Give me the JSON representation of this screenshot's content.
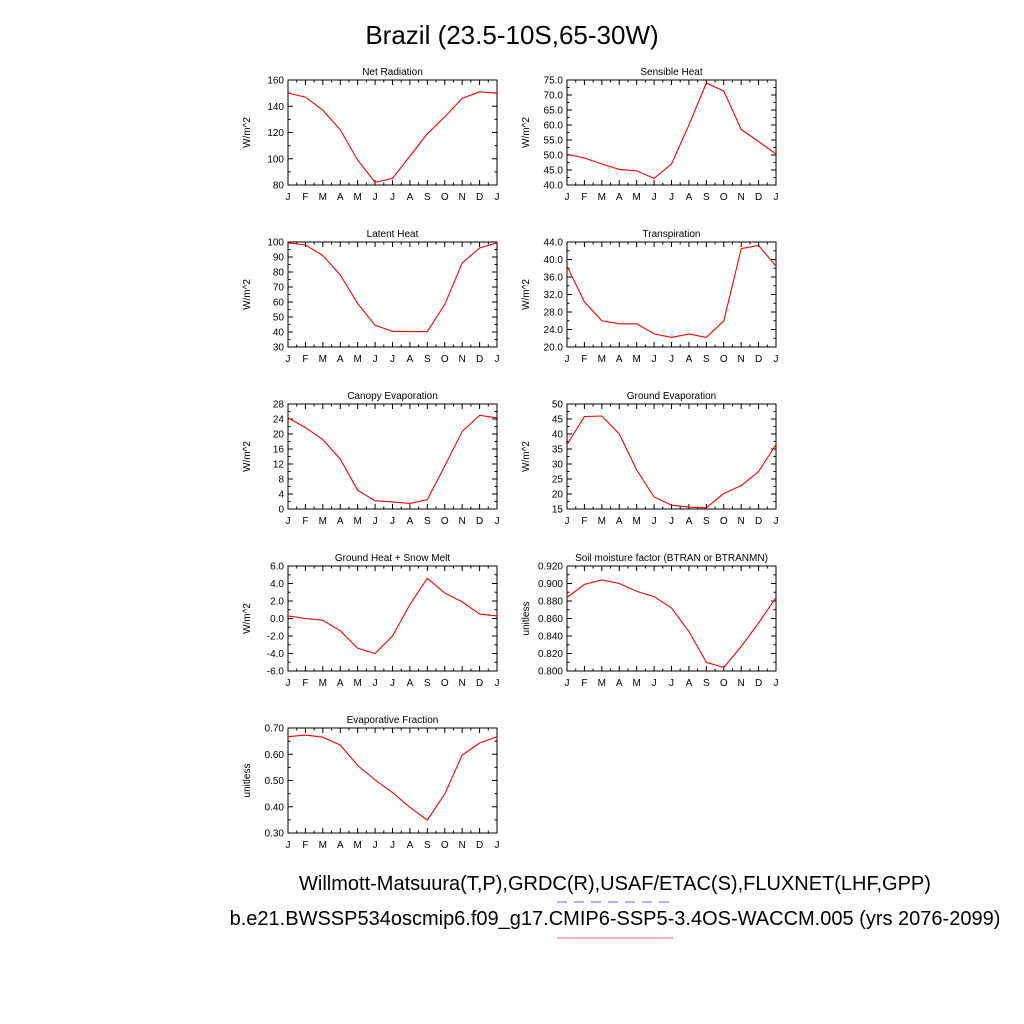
{
  "title": "Brazil (23.5-10S,65-30W)",
  "footer": {
    "line1": "Willmott-Matsuura(T,P),GRDC(R),USAF/ETAC(S),FLUXNET(LHF,GPP)",
    "line2": "b.e21.BWSSP534oscmip6.f09_g17.CMIP6-SSP5-3.4OS-WACCM.005 (yrs 2076-2099)",
    "line1_underline_color": "#6060ff",
    "line2_underline_color": "#ff6060"
  },
  "colors": {
    "series": "#ff0000",
    "axes": "#000000"
  },
  "chart_data": [
    {
      "type": "line",
      "title": "Net Radiation",
      "ylabel": "W/m^2",
      "categories": [
        "J",
        "F",
        "M",
        "A",
        "M",
        "J",
        "J",
        "A",
        "S",
        "O",
        "N",
        "D",
        "J"
      ],
      "values": [
        150,
        147,
        137,
        122,
        99,
        82,
        85,
        102,
        119,
        132,
        146,
        151,
        150
      ],
      "ylim": [
        80,
        160
      ],
      "yticks": [
        "80",
        "100",
        "120",
        "140",
        "160"
      ],
      "ytick_values": [
        80,
        100,
        120,
        140,
        160
      ]
    },
    {
      "type": "line",
      "title": "Sensible Heat",
      "ylabel": "W/m^2",
      "categories": [
        "J",
        "F",
        "M",
        "A",
        "M",
        "J",
        "J",
        "A",
        "S",
        "O",
        "N",
        "D",
        "J"
      ],
      "values": [
        50.3,
        49.0,
        47.0,
        45.2,
        44.7,
        42.2,
        47.0,
        60.0,
        74.0,
        71.3,
        58.5,
        54.5,
        50.3
      ],
      "ylim": [
        40,
        75
      ],
      "yticks": [
        "40.0",
        "45.0",
        "50.0",
        "55.0",
        "60.0",
        "65.0",
        "70.0",
        "75.0"
      ],
      "ytick_values": [
        40,
        45,
        50,
        55,
        60,
        65,
        70,
        75
      ]
    },
    {
      "type": "line",
      "title": "Latent Heat",
      "ylabel": "W/m^2",
      "categories": [
        "J",
        "F",
        "M",
        "A",
        "M",
        "J",
        "J",
        "A",
        "S",
        "O",
        "N",
        "D",
        "J"
      ],
      "values": [
        99.5,
        98,
        91,
        78,
        59,
        44.5,
        40.5,
        40.3,
        40.3,
        58.5,
        86,
        96,
        99.5
      ],
      "ylim": [
        30,
        100
      ],
      "yticks": [
        "30",
        "40",
        "50",
        "60",
        "70",
        "80",
        "90",
        "100"
      ],
      "ytick_values": [
        30,
        40,
        50,
        60,
        70,
        80,
        90,
        100
      ]
    },
    {
      "type": "line",
      "title": "Transpiration",
      "ylabel": "W/m^2",
      "categories": [
        "J",
        "F",
        "M",
        "A",
        "M",
        "J",
        "J",
        "A",
        "S",
        "O",
        "N",
        "D",
        "J"
      ],
      "values": [
        38.5,
        30.3,
        26.0,
        25.3,
        25.3,
        23.0,
        22.2,
        23.0,
        22.2,
        26.0,
        42.5,
        43.2,
        38.5
      ],
      "ylim": [
        20,
        44
      ],
      "yticks": [
        "20.0",
        "24.0",
        "28.0",
        "32.0",
        "36.0",
        "40.0",
        "44.0"
      ],
      "ytick_values": [
        20,
        24,
        28,
        32,
        36,
        40,
        44
      ]
    },
    {
      "type": "line",
      "title": "Canopy Evaporation",
      "ylabel": "W/m^2",
      "categories": [
        "J",
        "F",
        "M",
        "A",
        "M",
        "J",
        "J",
        "A",
        "S",
        "O",
        "N",
        "D",
        "J"
      ],
      "values": [
        24.3,
        21.7,
        18.5,
        13.3,
        5.0,
        2.2,
        1.9,
        1.5,
        2.5,
        11.5,
        20.7,
        25.0,
        24.3
      ],
      "ylim": [
        0,
        28
      ],
      "yticks": [
        "0",
        "4",
        "8",
        "12",
        "16",
        "20",
        "24",
        "28"
      ],
      "ytick_values": [
        0,
        4,
        8,
        12,
        16,
        20,
        24,
        28
      ]
    },
    {
      "type": "line",
      "title": "Ground Evaporation",
      "ylabel": "W/m^2",
      "categories": [
        "J",
        "F",
        "M",
        "A",
        "M",
        "J",
        "J",
        "A",
        "S",
        "O",
        "N",
        "D",
        "J"
      ],
      "values": [
        36.5,
        45.8,
        46.0,
        40.0,
        28.0,
        19.0,
        16.3,
        15.6,
        15.4,
        20.2,
        22.8,
        27.5,
        36.5
      ],
      "ylim": [
        15,
        50
      ],
      "yticks": [
        "15",
        "20",
        "25",
        "30",
        "35",
        "40",
        "45",
        "50"
      ],
      "ytick_values": [
        15,
        20,
        25,
        30,
        35,
        40,
        45,
        50
      ]
    },
    {
      "type": "line",
      "title": "Ground Heat + Snow Melt",
      "ylabel": "W/m^2",
      "categories": [
        "J",
        "F",
        "M",
        "A",
        "M",
        "J",
        "J",
        "A",
        "S",
        "O",
        "N",
        "D",
        "J"
      ],
      "values": [
        0.3,
        0.0,
        -0.2,
        -1.4,
        -3.4,
        -4.0,
        -2.0,
        1.6,
        4.6,
        2.9,
        1.9,
        0.5,
        0.3
      ],
      "ylim": [
        -6,
        6
      ],
      "yticks": [
        "-6.0",
        "-4.0",
        "-2.0",
        "0.0",
        "2.0",
        "4.0",
        "6.0"
      ],
      "ytick_values": [
        -6,
        -4,
        -2,
        0,
        2,
        4,
        6
      ]
    },
    {
      "type": "line",
      "title": "Soil moisture factor (BTRAN or BTRANMN)",
      "ylabel": "unitless",
      "categories": [
        "J",
        "F",
        "M",
        "A",
        "M",
        "J",
        "J",
        "A",
        "S",
        "O",
        "N",
        "D",
        "J"
      ],
      "values": [
        0.884,
        0.899,
        0.904,
        0.9,
        0.891,
        0.885,
        0.872,
        0.845,
        0.81,
        0.804,
        0.828,
        0.855,
        0.884
      ],
      "ylim": [
        0.8,
        0.92
      ],
      "yticks": [
        "0.800",
        "0.820",
        "0.840",
        "0.860",
        "0.880",
        "0.900",
        "0.920"
      ],
      "ytick_values": [
        0.8,
        0.82,
        0.84,
        0.86,
        0.88,
        0.9,
        0.92
      ]
    },
    {
      "type": "line",
      "title": "Evaporative Fraction",
      "ylabel": "unitless",
      "categories": [
        "J",
        "F",
        "M",
        "A",
        "M",
        "J",
        "J",
        "A",
        "S",
        "O",
        "N",
        "D",
        "J"
      ],
      "values": [
        0.667,
        0.673,
        0.665,
        0.635,
        0.557,
        0.502,
        0.454,
        0.398,
        0.349,
        0.449,
        0.597,
        0.643,
        0.667
      ],
      "ylim": [
        0.3,
        0.7
      ],
      "yticks": [
        "0.30",
        "0.40",
        "0.50",
        "0.60",
        "0.70"
      ],
      "ytick_values": [
        0.3,
        0.4,
        0.5,
        0.6,
        0.7
      ]
    }
  ]
}
